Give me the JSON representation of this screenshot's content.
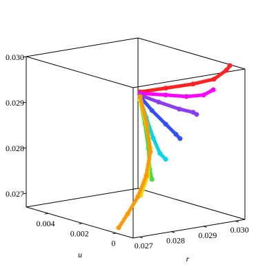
{
  "chart_data": {
    "type": "scatter3d",
    "xlabel": "r",
    "ylabel": "u",
    "xlim": [
      0.0268,
      0.0303
    ],
    "ylim": [
      -0.001,
      0.0053
    ],
    "zlim": [
      0.0267,
      0.03
    ],
    "xticks": [
      0.027,
      0.028,
      0.029,
      {
        "value": 0.03,
        "label": "0.030"
      }
    ],
    "yticks": [
      0,
      0.002,
      0.004
    ],
    "zticks": [
      0.027,
      0.028,
      0.029,
      {
        "value": 0.03,
        "label": "0.030"
      }
    ],
    "series": [
      {
        "color": "#ff2020",
        "r": [
          0.02755,
          0.02835,
          0.02921,
          0.02986,
          0.03025,
          0.03036
        ],
        "u": [
          0,
          0,
          0,
          0,
          0,
          0
        ],
        "z": [
          0.02971,
          0.0297,
          0.02969,
          0.02972,
          0.02987,
          0.02996
        ]
      },
      {
        "color": "#ff00ff",
        "r": [
          0.02755,
          0.02835,
          0.029,
          0.02954,
          0.02984
        ],
        "u": [
          0,
          0,
          0,
          0,
          0
        ],
        "z": [
          0.02968,
          0.02955,
          0.02944,
          0.02941,
          0.02949
        ]
      },
      {
        "color": "#8a3cf0",
        "r": [
          0.02755,
          0.02813,
          0.02878,
          0.02921,
          0.02932
        ],
        "u": [
          0,
          0,
          0,
          0,
          0
        ],
        "z": [
          0.02964,
          0.02942,
          0.02919,
          0.02907,
          0.02901
        ]
      },
      {
        "color": "#3050ff",
        "r": [
          0.02755,
          0.02792,
          0.02835,
          0.02867,
          0.0288
        ],
        "u": [
          0,
          0,
          0,
          0,
          0
        ],
        "z": [
          0.02961,
          0.02926,
          0.02891,
          0.02865,
          0.02854
        ]
      },
      {
        "color": "#00d8e8",
        "r": [
          0.02755,
          0.02774,
          0.02796,
          0.02817,
          0.02835
        ],
        "u": [
          0,
          0,
          0,
          0,
          0
        ],
        "z": [
          0.02958,
          0.02913,
          0.02865,
          0.02829,
          0.02814
        ]
      },
      {
        "color": "#40e040",
        "r": [
          0.02755,
          0.0277,
          0.02781,
          0.02785,
          0.02792
        ],
        "u": [
          0,
          0,
          0,
          0,
          0
        ],
        "z": [
          0.02953,
          0.02899,
          0.02844,
          0.02798,
          0.02775
        ]
      },
      {
        "color": "#e8e000",
        "r": [
          0.02755,
          0.02774,
          0.02787,
          0.02779,
          0.02757
        ],
        "u": [
          0,
          0,
          0,
          0,
          0
        ],
        "z": [
          0.02953,
          0.02898,
          0.02844,
          0.02784,
          0.02744
        ]
      },
      {
        "color": "#ff9900",
        "r": [
          0.02755,
          0.02776,
          0.02787,
          0.02774,
          0.02748,
          0.02716,
          0.02688
        ],
        "u": [
          0,
          0,
          0,
          0,
          0,
          0,
          0
        ],
        "z": [
          0.02961,
          0.02898,
          0.02836,
          0.02785,
          0.02742,
          0.02708,
          0.02681
        ]
      }
    ]
  }
}
